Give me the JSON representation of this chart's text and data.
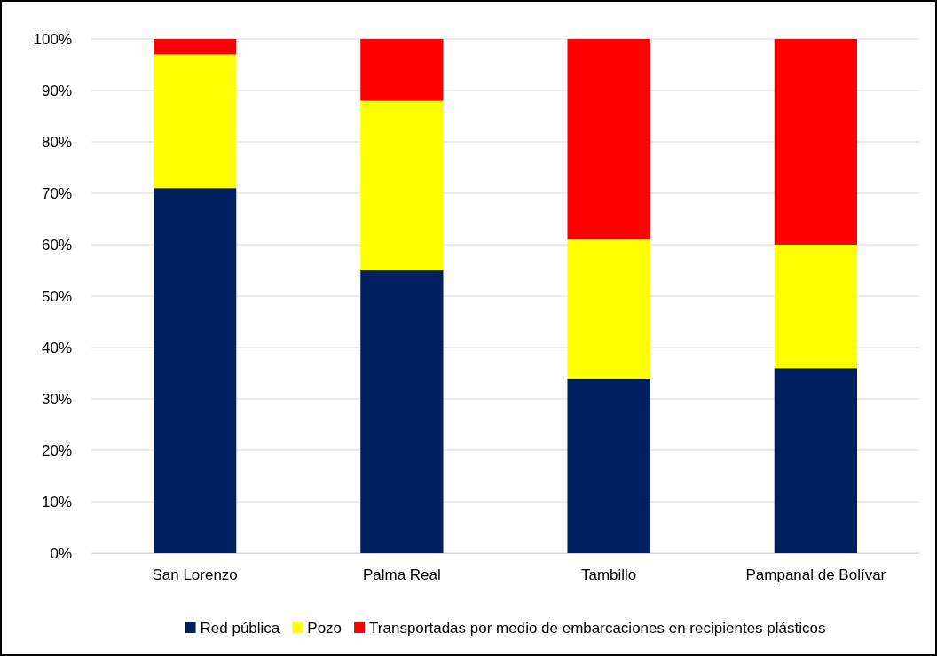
{
  "chart_data": {
    "type": "bar",
    "stacked": true,
    "categories": [
      "San Lorenzo",
      "Palma Real",
      "Tambillo",
      "Pampanal de Bolívar"
    ],
    "series": [
      {
        "name": "Red pública",
        "color": "#002060",
        "values": [
          71,
          55,
          34,
          36
        ]
      },
      {
        "name": "Pozo",
        "color": "#ffff00",
        "values": [
          26,
          33,
          27,
          24
        ]
      },
      {
        "name": "Transportadas por medio de embarcaciones en recipientes plásticos",
        "color": "#ff0000",
        "values": [
          3,
          12,
          39,
          40
        ]
      }
    ],
    "ylim": [
      0,
      100
    ],
    "yticks": [
      {
        "value": 0,
        "label": "0%"
      },
      {
        "value": 10,
        "label": "10%"
      },
      {
        "value": 20,
        "label": "20%"
      },
      {
        "value": 30,
        "label": "30%"
      },
      {
        "value": 40,
        "label": "40%"
      },
      {
        "value": 50,
        "label": "50%"
      },
      {
        "value": 60,
        "label": "60%"
      },
      {
        "value": 70,
        "label": "70%"
      },
      {
        "value": 80,
        "label": "80%"
      },
      {
        "value": 90,
        "label": "90%"
      },
      {
        "value": 100,
        "label": "100%"
      }
    ],
    "grid": "y",
    "legend": "bottom"
  }
}
